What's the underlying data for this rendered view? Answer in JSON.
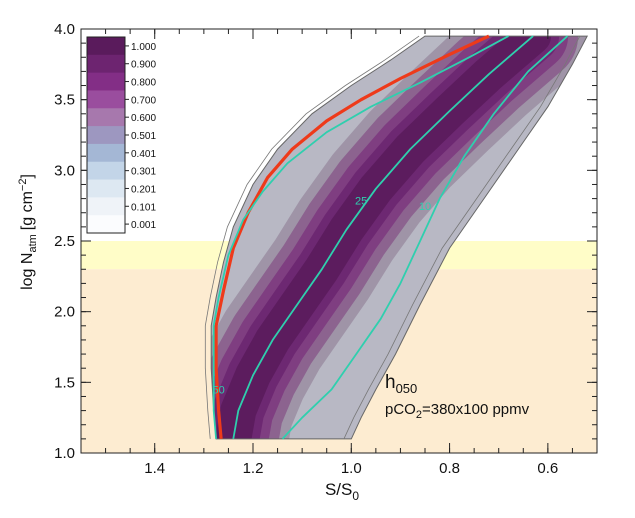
{
  "chart_data": {
    "type": "contour",
    "title": "",
    "xlabel": "S/S",
    "xlabel_sub": "0",
    "ylabel": "log N",
    "ylabel_sub": "atm",
    "ylabel_units": "[g cm",
    "ylabel_units_sup": "−2",
    "ylabel_units_close": "]",
    "xlim": [
      1.55,
      0.5
    ],
    "ylim": [
      1.0,
      4.0
    ],
    "x_ticks": [
      1.4,
      1.2,
      1.0,
      0.8,
      0.6
    ],
    "x_tick_labels": [
      "1.4",
      "1.2",
      "1.0",
      "0.8",
      "0.6"
    ],
    "y_ticks": [
      1.0,
      1.5,
      2.0,
      2.5,
      3.0,
      3.5,
      4.0
    ],
    "y_tick_labels": [
      "1.0",
      "1.5",
      "2.0",
      "2.5",
      "3.0",
      "3.5",
      "4.0"
    ],
    "colorbar_levels": [
      "1.000",
      "0.900",
      "0.800",
      "0.700",
      "0.600",
      "0.501",
      "0.401",
      "0.301",
      "0.201",
      "0.101",
      "0.001"
    ],
    "colorbar_colors": [
      "#5a1b5c",
      "#6d2470",
      "#832e86",
      "#9a4d9e",
      "#a778ad",
      "#9d97c0",
      "#a4b7d5",
      "#c3d5e8",
      "#dde8f2",
      "#eff3f8",
      "#fbfcfe"
    ],
    "shaded_bands": [
      {
        "name": "light-yellow-band",
        "ymin": 2.3,
        "ymax": 2.5,
        "color": "#fffdc8"
      },
      {
        "name": "light-orange-band",
        "ymin": 1.0,
        "ymax": 2.3,
        "color": "#fdecd1"
      }
    ],
    "outer_boundary": {
      "left": [
        [
          1.275,
          1.1
        ],
        [
          1.28,
          1.3
        ],
        [
          1.285,
          1.6
        ],
        [
          1.285,
          1.9
        ],
        [
          1.275,
          2.1
        ],
        [
          1.26,
          2.35
        ],
        [
          1.24,
          2.6
        ],
        [
          1.2,
          2.9
        ],
        [
          1.15,
          3.15
        ],
        [
          1.08,
          3.4
        ],
        [
          1.0,
          3.6
        ],
        [
          0.92,
          3.78
        ],
        [
          0.85,
          3.95
        ]
      ],
      "right": [
        [
          0.52,
          3.95
        ],
        [
          0.55,
          3.75
        ],
        [
          0.6,
          3.45
        ],
        [
          0.66,
          3.15
        ],
        [
          0.73,
          2.8
        ],
        [
          0.8,
          2.45
        ],
        [
          0.86,
          2.05
        ],
        [
          0.91,
          1.7
        ],
        [
          0.95,
          1.45
        ],
        [
          0.98,
          1.25
        ],
        [
          1.0,
          1.1
        ]
      ]
    },
    "lines": [
      {
        "name": "red-line",
        "color": "#ee3a1a",
        "width": 3.2,
        "points": [
          [
            1.265,
            1.1
          ],
          [
            1.27,
            1.3
          ],
          [
            1.275,
            1.6
          ],
          [
            1.275,
            1.9
          ],
          [
            1.26,
            2.15
          ],
          [
            1.24,
            2.45
          ],
          [
            1.21,
            2.7
          ],
          [
            1.17,
            2.95
          ],
          [
            1.12,
            3.15
          ],
          [
            1.05,
            3.35
          ],
          [
            0.98,
            3.5
          ],
          [
            0.9,
            3.65
          ],
          [
            0.8,
            3.82
          ],
          [
            0.72,
            3.95
          ]
        ]
      },
      {
        "name": "contour-50",
        "color": "#2fcfae",
        "width": 1.8,
        "label": "50",
        "label_at": [
          1.27,
          1.42
        ],
        "points": [
          [
            1.275,
            1.1
          ],
          [
            1.28,
            1.3
          ],
          [
            1.28,
            1.6
          ],
          [
            1.28,
            1.9
          ],
          [
            1.27,
            2.1
          ],
          [
            1.25,
            2.4
          ],
          [
            1.22,
            2.65
          ],
          [
            1.18,
            2.85
          ],
          [
            1.13,
            3.05
          ],
          [
            1.05,
            3.27
          ],
          [
            0.96,
            3.45
          ],
          [
            0.86,
            3.62
          ],
          [
            0.76,
            3.8
          ],
          [
            0.68,
            3.95
          ]
        ]
      },
      {
        "name": "contour-25",
        "color": "#2fcfae",
        "width": 1.8,
        "label": "25",
        "label_at": [
          0.98,
          2.76
        ],
        "points": [
          [
            1.24,
            1.1
          ],
          [
            1.23,
            1.3
          ],
          [
            1.2,
            1.55
          ],
          [
            1.16,
            1.8
          ],
          [
            1.11,
            2.05
          ],
          [
            1.06,
            2.3
          ],
          [
            1.01,
            2.58
          ],
          [
            0.95,
            2.87
          ],
          [
            0.88,
            3.15
          ],
          [
            0.8,
            3.42
          ],
          [
            0.72,
            3.68
          ],
          [
            0.63,
            3.95
          ]
        ]
      },
      {
        "name": "contour-10",
        "color": "#2fcfae",
        "width": 1.8,
        "label": "10",
        "label_at": [
          0.85,
          2.72
        ],
        "points": [
          [
            1.14,
            1.1
          ],
          [
            1.1,
            1.25
          ],
          [
            1.04,
            1.45
          ],
          [
            0.99,
            1.7
          ],
          [
            0.94,
            1.95
          ],
          [
            0.9,
            2.2
          ],
          [
            0.86,
            2.5
          ],
          [
            0.82,
            2.8
          ],
          [
            0.77,
            3.1
          ],
          [
            0.71,
            3.4
          ],
          [
            0.64,
            3.7
          ],
          [
            0.56,
            3.95
          ]
        ]
      }
    ],
    "annotation_line1": "h",
    "annotation_line1_sub": "050",
    "annotation_line2_a": "pCO",
    "annotation_line2_sub": "2",
    "annotation_line2_b": "=380x100 ppmv"
  }
}
